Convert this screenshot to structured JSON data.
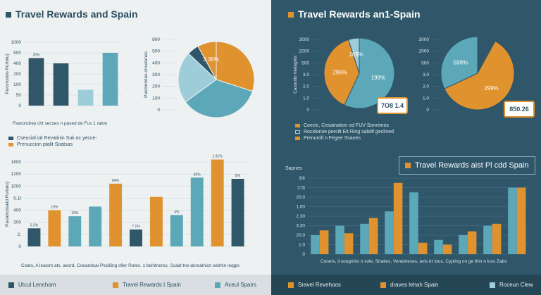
{
  "colors": {
    "navy": "#2f5669",
    "orange": "#e0922f",
    "teal": "#5ca7b8",
    "light_teal": "#9ccdd8",
    "dark_bg": "#2f5669"
  },
  "left": {
    "title": "Travel Rewards and Spain",
    "bar_caption": "Fearondrey cht secses n pased de Fus 1 raton",
    "legend": [
      "Cseocial od Revatinin Suk oc yecce-",
      "Prenuccion ptalit Soatsas"
    ],
    "bottom_caption": "Coats, A leaiom ats, aesrd, Coeandsai Picdiiing sfier Rotes. s beihtnerss. Scaid tne doroalnicn sebhin loqgis",
    "footer": [
      "Utcul Lenchom",
      "Travel Rewards I Spain",
      "Aceul Spairs"
    ]
  },
  "right": {
    "title": "Travel Rewards an1-Spain",
    "pie_axis_label": "Casoutio metagels",
    "legend": [
      "Coecic, Cesaination od FUV Sonnimos",
      "Rocidonse percilt Eit Ring salsitf geclined",
      "Prenuroll n Fegee Ssanes"
    ],
    "boxed_title": "Travel Rewards aist Pl cdd Spain",
    "bar_label": "Sapnes",
    "bottom_caption": "Conets, ll sougnhis n sole, Siraties, Ventdrieses, avis trt tous, Cypiing on ge thin n loss Zabs",
    "footer": [
      "Sravel Revehoos",
      "draves lehah Spain",
      "Roceun Clew"
    ]
  },
  "chart_data": [
    {
      "type": "bar",
      "panel": "left-top",
      "ylabel": "Paronosiso Purtotu)",
      "yticks": [
        "1000",
        "500",
        "400",
        "200",
        "100",
        "50",
        "0"
      ],
      "ylim": [
        0,
        6
      ],
      "x": [
        1,
        2,
        3,
        4
      ],
      "values": [
        4.5,
        4.0,
        1.5,
        5.0
      ],
      "colors": [
        "navy",
        "navy",
        "light_teal",
        "teal"
      ],
      "data_labels": [
        "30%",
        "",
        "",
        ""
      ]
    },
    {
      "type": "pie",
      "panel": "left-top",
      "ylabel": "Pasmoridas onvalunes",
      "yticks": [
        "800",
        "500",
        "400",
        "300",
        "200",
        "100",
        "0"
      ],
      "slices": [
        {
          "value": 30,
          "color": "orange",
          "label": ""
        },
        {
          "value": 35,
          "color": "teal",
          "label": ""
        },
        {
          "value": 22,
          "color": "light_teal",
          "label": ""
        },
        {
          "value": 5,
          "color": "navy",
          "label": ""
        },
        {
          "value": 8,
          "color": "orange",
          "label": "3.36%"
        }
      ]
    },
    {
      "type": "bar",
      "panel": "left-bottom",
      "ylabel": "Paraoicosaiid Purtatu)",
      "yticks": [
        "1800",
        "1200",
        "1000",
        "5.1t",
        "400",
        "300",
        "2.",
        "0"
      ],
      "ylim": [
        0,
        7
      ],
      "x": [
        1,
        2,
        3,
        4,
        5,
        6,
        7,
        8,
        9,
        10,
        11
      ],
      "values": [
        1.5,
        3.0,
        2.5,
        3.3,
        5.2,
        1.4,
        4.1,
        2.6,
        5.7,
        7.2,
        5.6
      ],
      "colors": [
        "navy",
        "orange",
        "teal",
        "teal",
        "orange",
        "navy",
        "orange",
        "teal",
        "teal",
        "orange",
        "navy"
      ],
      "data_labels": [
        "3.3%",
        "10%",
        "10%",
        "",
        "84%",
        "7.1%",
        "",
        "4%",
        "83%",
        "1.91%",
        "8%"
      ]
    },
    {
      "type": "pie",
      "panel": "right-top",
      "ylabel": "Casoutio metagels",
      "yticks": [
        "3000",
        "2000",
        "500",
        "3.0",
        "2.0",
        "1.0",
        "0"
      ],
      "slices": [
        {
          "value": 57,
          "color": "teal",
          "label": "199%"
        },
        {
          "value": 38,
          "color": "orange",
          "label": "299%"
        },
        {
          "value": 5,
          "color": "light_teal",
          "label": "165%"
        }
      ],
      "callout": "7O8 1.4"
    },
    {
      "type": "pie",
      "panel": "right-top",
      "yticks": [
        "3000",
        "2000",
        "500",
        "3.0",
        "2.0",
        "1.0",
        "0"
      ],
      "slices": [
        {
          "value": 8,
          "color": "navy",
          "label": ""
        },
        {
          "value": 60,
          "color": "orange",
          "label": "299%"
        },
        {
          "value": 32,
          "color": "teal",
          "label": "599%"
        }
      ],
      "callout": "850.26"
    },
    {
      "type": "bar",
      "panel": "right-bottom",
      "yticks": [
        "30t",
        "2.5t",
        "20.0",
        "1.00",
        "2.30",
        "3.30",
        "20.0",
        "1.0",
        "0"
      ],
      "ylim": [
        0,
        8
      ],
      "x": [
        1,
        2,
        3,
        4,
        5,
        6,
        7,
        8,
        9
      ],
      "series": [
        {
          "values": [
            2.0,
            3.0,
            3.2,
            4.5,
            6.5,
            1.5,
            2.0,
            3.0,
            7.0
          ],
          "color": "teal"
        },
        {
          "values": [
            2.5,
            2.2,
            3.8,
            7.5,
            1.2,
            1.0,
            2.4,
            3.2,
            7.0
          ],
          "color": "orange"
        }
      ]
    }
  ]
}
